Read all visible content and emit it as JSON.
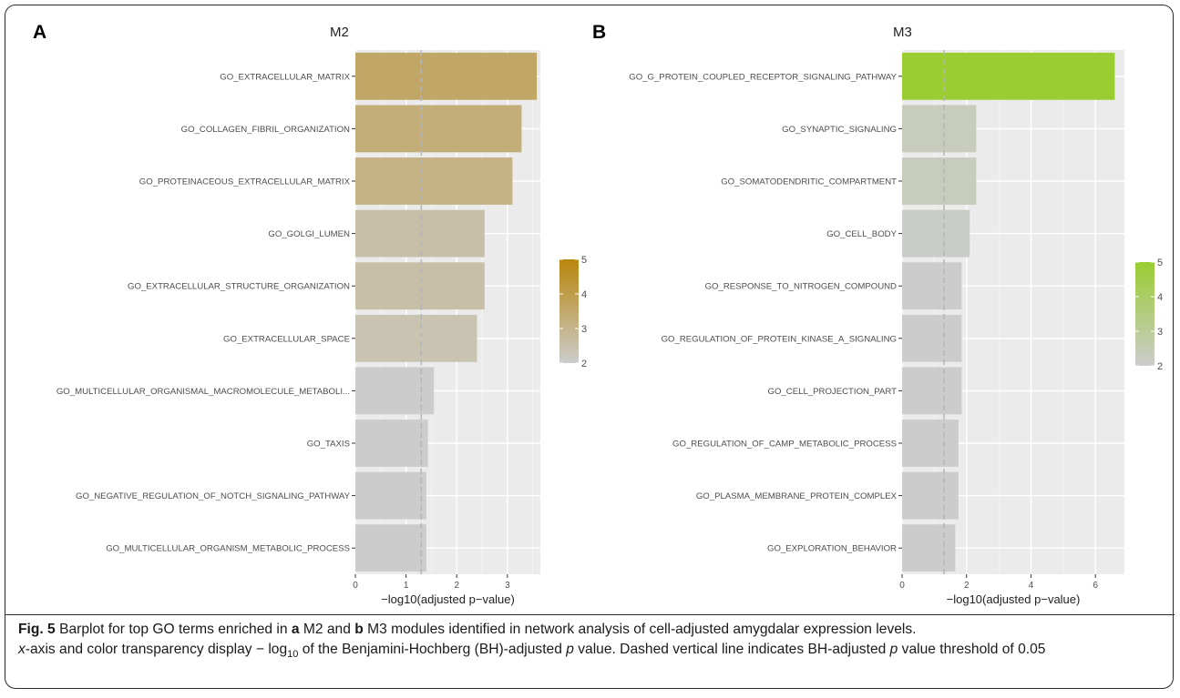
{
  "panel_labels": [
    "A",
    "B"
  ],
  "chart_data": [
    {
      "type": "bar",
      "orientation": "horizontal",
      "title": "M2",
      "xlabel": "−log10(adjusted p−value)",
      "xlim": [
        0,
        3.65
      ],
      "xticks": [
        "0",
        "1",
        "2",
        "3"
      ],
      "threshold_line": 1.3,
      "categories": [
        "GO_EXTRACELLULAR_MATRIX",
        "GO_COLLAGEN_FIBRIL_ORGANIZATION",
        "GO_PROTEINACEOUS_EXTRACELLULAR_MATRIX",
        "GO_GOLGI_LUMEN",
        "GO_EXTRACELLULAR_STRUCTURE_ORGANIZATION",
        "GO_EXTRACELLULAR_SPACE",
        "GO_MULTICELLULAR_ORGANISMAL_MACROMOLECULE_METABOLI...",
        "GO_TAXIS",
        "GO_NEGATIVE_REGULATION_OF_NOTCH_SIGNALING_PATHWAY",
        "GO_MULTICELLULAR_ORGANISM_METABOLIC_PROCESS"
      ],
      "values": [
        3.58,
        3.28,
        3.1,
        2.55,
        2.55,
        2.4,
        1.55,
        1.43,
        1.4,
        1.4
      ],
      "legend": {
        "ticks": [
          "5",
          "4",
          "3",
          "2"
        ],
        "low_color": "#cccccc",
        "high_color": "#b8860b",
        "range": [
          2,
          5
        ]
      },
      "panel_background": "#ebebeb",
      "gridlines": true
    },
    {
      "type": "bar",
      "orientation": "horizontal",
      "title": "M3",
      "xlabel": "−log10(adjusted p−value)",
      "xlim": [
        0,
        6.9
      ],
      "xticks": [
        "0",
        "2",
        "4",
        "6"
      ],
      "threshold_line": 1.3,
      "categories": [
        "GO_G_PROTEIN_COUPLED_RECEPTOR_SIGNALING_PATHWAY",
        "GO_SYNAPTIC_SIGNALING",
        "GO_SOMATODENDRITIC_COMPARTMENT",
        "GO_CELL_BODY",
        "GO_RESPONSE_TO_NITROGEN_COMPOUND",
        "GO_REGULATION_OF_PROTEIN_KINASE_A_SIGNALING",
        "GO_CELL_PROJECTION_PART",
        "GO_REGULATION_OF_CAMP_METABOLIC_PROCESS",
        "GO_PLASMA_MEMBRANE_PROTEIN_COMPLEX",
        "GO_EXPLORATION_BEHAVIOR"
      ],
      "values": [
        6.6,
        2.3,
        2.3,
        2.1,
        1.85,
        1.85,
        1.85,
        1.75,
        1.75,
        1.65
      ],
      "legend": {
        "ticks": [
          "5",
          "4",
          "3",
          "2"
        ],
        "low_color": "#cccccc",
        "high_color": "#9acd32",
        "range": [
          2,
          5
        ]
      },
      "panel_background": "#ebebeb",
      "gridlines": true
    }
  ],
  "caption": {
    "fig_label": "Fig. 5",
    "line1_a": " Barplot for top GO terms enriched in ",
    "a": "a",
    "line1_b": " M2 and ",
    "b": "b",
    "line1_c": " M3 modules identified in network analysis of cell-adjusted amygdalar expression levels.",
    "x": "x",
    "line2_a": "-axis and color transparency display − log",
    "sub10": "10",
    "line2_b": " of the Benjamini-Hochberg (BH)-adjusted ",
    "p1": "p",
    "line2_c": " value. Dashed vertical line indicates BH-adjusted ",
    "p2": "p",
    "line2_d": " value threshold of 0.05"
  }
}
